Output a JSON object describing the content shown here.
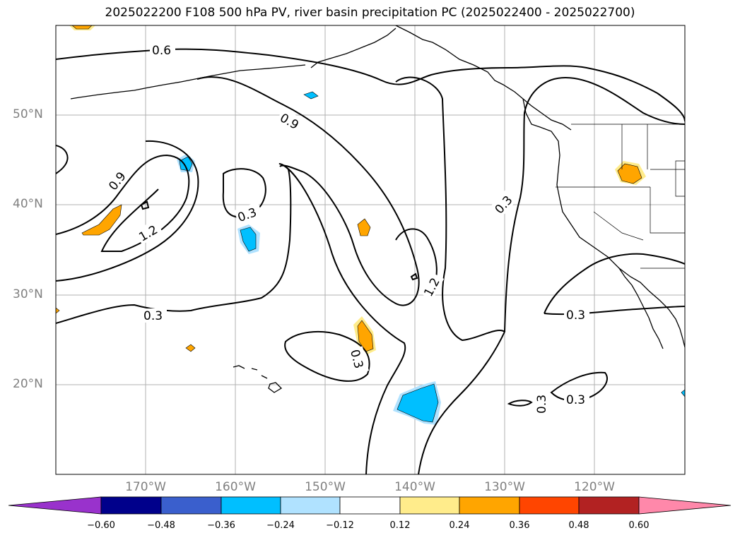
{
  "title": "2025022200 F108 500 hPa PV, river basin precipitation PC (2025022400 - 2025022700)",
  "axes": {
    "lat_ticks": [
      "50°N",
      "40°N",
      "30°N",
      "20°N"
    ],
    "lon_ticks": [
      "170°W",
      "160°W",
      "150°W",
      "140°W",
      "130°W",
      "120°W"
    ]
  },
  "contour_labels": {
    "pv_06": "0.6",
    "pv_09_north": "0.9",
    "pv_09_west": "0.9",
    "pv_12_west": "1.2",
    "pv_12_east": "1.2",
    "pv_03_south_west": "0.3",
    "pv_03_center": "0.3",
    "pv_03_subtropic": "0.3",
    "pv_03_east_diag": "0.3",
    "pv_03_baja": "0.3",
    "pv_03_se_vert": "0.3",
    "pv_03_se": "0.3"
  },
  "colorbar": {
    "tick_labels": [
      "−0.60",
      "−0.48",
      "−0.36",
      "−0.24",
      "−0.12",
      "0.12",
      "0.24",
      "0.36",
      "0.48",
      "0.60"
    ],
    "colors": [
      "#9932cc",
      "#00008b",
      "#3a5fcd",
      "#00bfff",
      "#b0e2ff",
      "#ffffff",
      "#ffec8b",
      "#ffa500",
      "#ff4500",
      "#b22222",
      "#ff88aa"
    ]
  },
  "colors": {
    "grid": "#b0b0b0",
    "contour": "#000000",
    "axis_label": "#808080"
  }
}
